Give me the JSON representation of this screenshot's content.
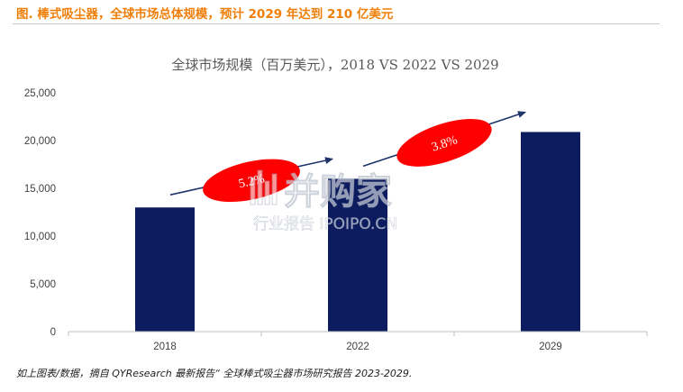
{
  "header": {
    "title": "图.  棒式吸尘器，全球市场总体规模，预计 2029 年达到 210 亿美元"
  },
  "footer": {
    "source": "如上图表/数据，摘自 QYResearch 最新报告“ 全球棒式吸尘器市场研究报告 2023-2029."
  },
  "watermark": {
    "brand": "并购家",
    "tagline": "行业报告 IPOIPO.CN"
  },
  "colors": {
    "bar": "#0c1c5e",
    "header_accent": "#f07f09",
    "growth_ellipse": "#ff0000",
    "arrow": "#1f3469"
  },
  "chart_data": {
    "type": "bar",
    "title": "全球市场规模（百万美元），2018 VS 2022 VS 2029",
    "categories": [
      "2018",
      "2022",
      "2029"
    ],
    "values": [
      13000,
      16000,
      20900
    ],
    "ylim": [
      0,
      25000
    ],
    "yticks": [
      "0",
      "5,000",
      "10,000",
      "15,000",
      "20,000",
      "25,000"
    ],
    "ytick_values": [
      0,
      5000,
      10000,
      15000,
      20000,
      25000
    ],
    "grid": false,
    "legend": "none",
    "annotations": [
      {
        "label": "5.2%",
        "from": "2018",
        "to": "2022"
      },
      {
        "label": "3.8%",
        "from": "2022",
        "to": "2029"
      }
    ]
  }
}
